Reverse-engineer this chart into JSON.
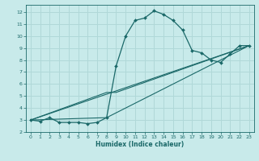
{
  "xlabel": "Humidex (Indice chaleur)",
  "background_color": "#c8eaea",
  "grid_color": "#b0d8d8",
  "line_color": "#1a6868",
  "xlim": [
    -0.5,
    23.5
  ],
  "ylim": [
    2,
    12.6
  ],
  "xticks": [
    0,
    1,
    2,
    3,
    4,
    5,
    6,
    7,
    8,
    9,
    10,
    11,
    12,
    13,
    14,
    15,
    16,
    17,
    18,
    19,
    20,
    21,
    22,
    23
  ],
  "yticks": [
    2,
    3,
    4,
    5,
    6,
    7,
    8,
    9,
    10,
    11,
    12
  ],
  "curve1_x": [
    0,
    1,
    2,
    3,
    4,
    5,
    6,
    7,
    8,
    9,
    10,
    11,
    12,
    13,
    14,
    15,
    16,
    17,
    18,
    19,
    20,
    21,
    22,
    23
  ],
  "curve1_y": [
    3.0,
    2.9,
    3.2,
    2.8,
    2.8,
    2.8,
    2.7,
    2.8,
    3.2,
    7.5,
    10.0,
    11.3,
    11.5,
    12.1,
    11.8,
    11.3,
    10.5,
    8.8,
    8.6,
    8.0,
    7.8,
    8.5,
    9.2,
    9.2
  ],
  "curve2_x": [
    0,
    23
  ],
  "curve2_y": [
    3.0,
    9.2
  ],
  "curve3_x": [
    0,
    8,
    9,
    23
  ],
  "curve3_y": [
    3.0,
    5.3,
    5.3,
    9.2
  ],
  "curve4_x": [
    0,
    8,
    23
  ],
  "curve4_y": [
    3.0,
    3.2,
    9.2
  ]
}
